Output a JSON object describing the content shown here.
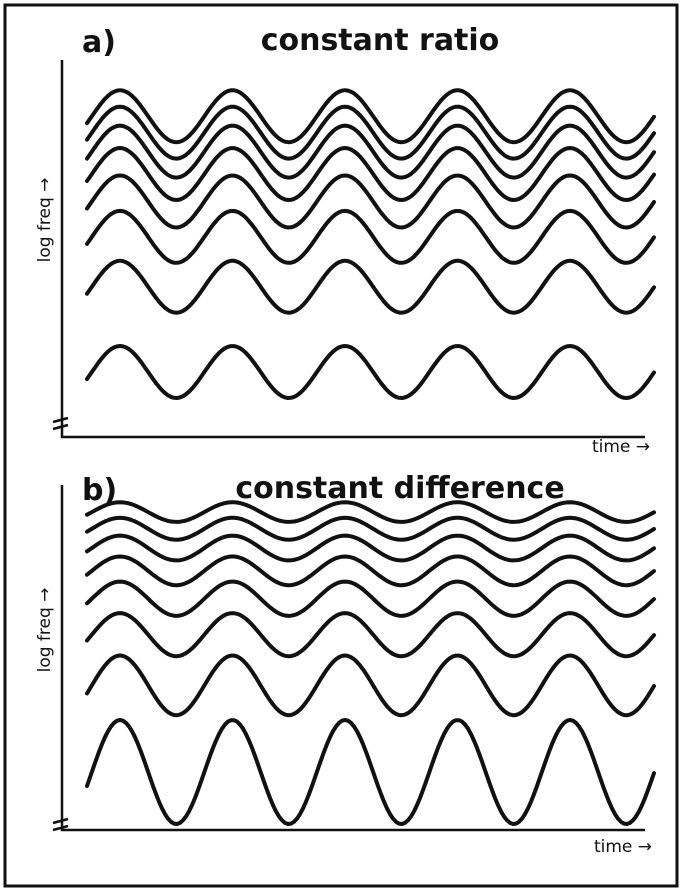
{
  "panels": [
    {
      "label": "a)",
      "title": "constant ratio",
      "y_label": "log freq →",
      "x_label": "time →"
    },
    {
      "label": "b)",
      "title": "constant difference",
      "y_label": "log freq →",
      "x_label": "time →"
    }
  ]
}
